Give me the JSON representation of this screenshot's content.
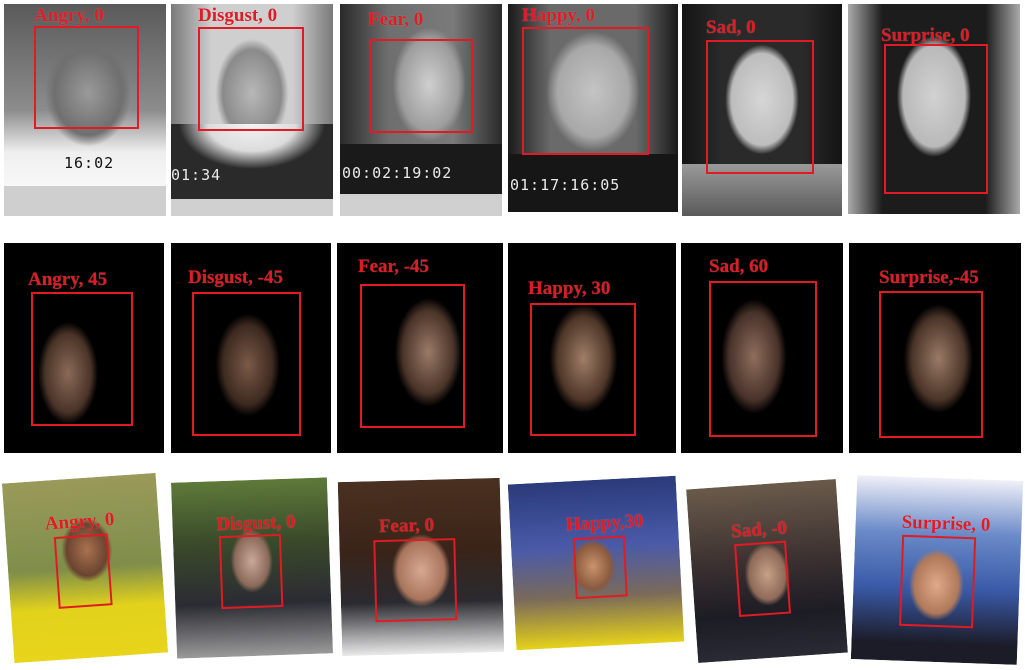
{
  "rows": [
    {
      "name": "posed-grayscale",
      "tiles": [
        {
          "label": "Angry, 0"
        },
        {
          "label": "Disgust, 0"
        },
        {
          "label": "Fear, 0"
        },
        {
          "label": "Happy, 0"
        },
        {
          "label": "Sad, 0"
        },
        {
          "label": "Surprise, 0"
        }
      ]
    },
    {
      "name": "multi-pose-dark",
      "tiles": [
        {
          "label": "Angry, 45"
        },
        {
          "label": "Disgust, -45"
        },
        {
          "label": "Fear, -45"
        },
        {
          "label": "Happy, 30"
        },
        {
          "label": "Sad, 60"
        },
        {
          "label": "Surprise,-45"
        }
      ]
    },
    {
      "name": "in-the-wild",
      "tiles": [
        {
          "label": "Angry, 0"
        },
        {
          "label": "Disgust, 0"
        },
        {
          "label": "Fear, 0"
        },
        {
          "label": "Happy,30"
        },
        {
          "label": "Sad, -0"
        },
        {
          "label": "Surprise, 0"
        }
      ]
    }
  ],
  "timecodes": [
    "16:02",
    "01:34",
    "00:02:19:02",
    "01:17:16:05"
  ],
  "colors": {
    "label": "#e01b24",
    "box": "#e01b24"
  }
}
